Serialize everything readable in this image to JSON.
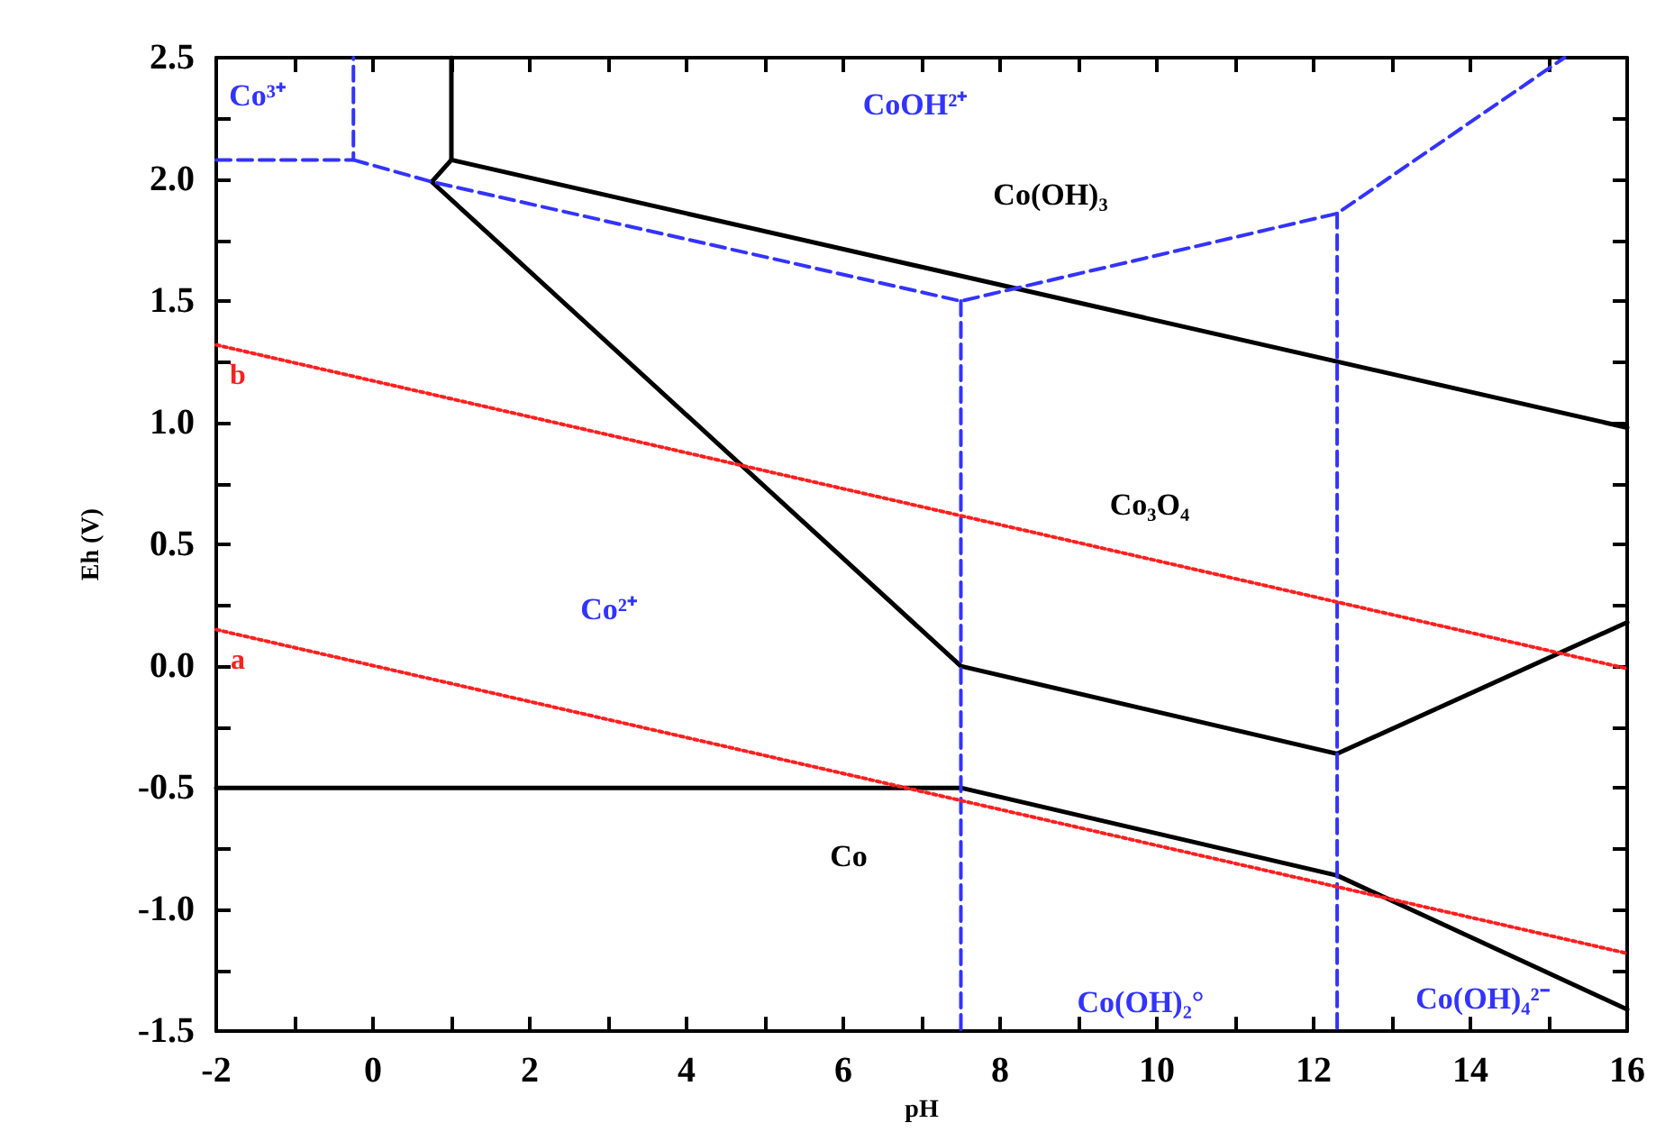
{
  "chart_data": {
    "type": "line",
    "xlabel": "pH",
    "ylabel": "Eh (V)",
    "xlim": [
      -2,
      16
    ],
    "xticks": [
      -2,
      0,
      2,
      4,
      6,
      8,
      10,
      12,
      14,
      16
    ],
    "ylim": [
      -1.5,
      2.5
    ],
    "yticks": [
      -1.5,
      {
        "value": -1,
        "label": "-1.0"
      },
      -0.5,
      {
        "value": 0,
        "label": "0.0"
      },
      0.5,
      {
        "value": 1,
        "label": "1.0"
      },
      1.5,
      {
        "value": 2,
        "label": "2.0"
      },
      2.5
    ],
    "grid": false,
    "legend": false,
    "marker": "none",
    "series": [
      {
        "color": "#000000",
        "line_style": "solid",
        "x": [
          -2,
          7.5,
          12.3,
          16
        ],
        "values": [
          -0.5,
          -0.5,
          -0.86,
          -1.41
        ]
      },
      {
        "color": "#000000",
        "line_style": "solid",
        "x": [
          1,
          0.75,
          7.5,
          12.3,
          16
        ],
        "values": [
          2.08,
          1.99,
          0,
          -0.36,
          0.18
        ]
      },
      {
        "color": "#000000",
        "line_style": "solid",
        "x": [
          1,
          1,
          16
        ],
        "values": [
          2.5,
          2.08,
          0.98
        ]
      },
      {
        "color": "#3333ff",
        "line_style": "dashed",
        "x": [
          -2,
          -0.25,
          -0.25
        ],
        "values": [
          2.08,
          2.08,
          2.5
        ]
      },
      {
        "color": "#3333ff",
        "line_style": "dashed",
        "x": [
          -0.25,
          0.75,
          7.5,
          12.3,
          15.2
        ],
        "values": [
          2.08,
          1.99,
          1.5,
          1.86,
          2.5
        ]
      },
      {
        "color": "#3333ff",
        "line_style": "dashed",
        "x": [
          7.5,
          7.5
        ],
        "values": [
          1.5,
          -1.5
        ]
      },
      {
        "color": "#3333ff",
        "line_style": "dashed",
        "x": [
          12.3,
          12.3
        ],
        "values": [
          1.86,
          -1.5
        ]
      },
      {
        "name": "a",
        "color": "#ff2020",
        "line_style": "dotted",
        "x": [
          -2,
          16
        ],
        "values": [
          0.15,
          -1.18
        ]
      },
      {
        "name": "b",
        "color": "#ff2020",
        "line_style": "dotted",
        "x": [
          -2,
          16
        ],
        "values": [
          1.32,
          -0.01
        ]
      }
    ],
    "annotations": [
      "Co³⁺",
      "CoOH²⁺",
      "Co(OH)₃",
      "Co₃O₄",
      "Co²⁺",
      "Co",
      "Co(OH)₂°",
      "Co(OH)₄²⁻"
    ]
  }
}
